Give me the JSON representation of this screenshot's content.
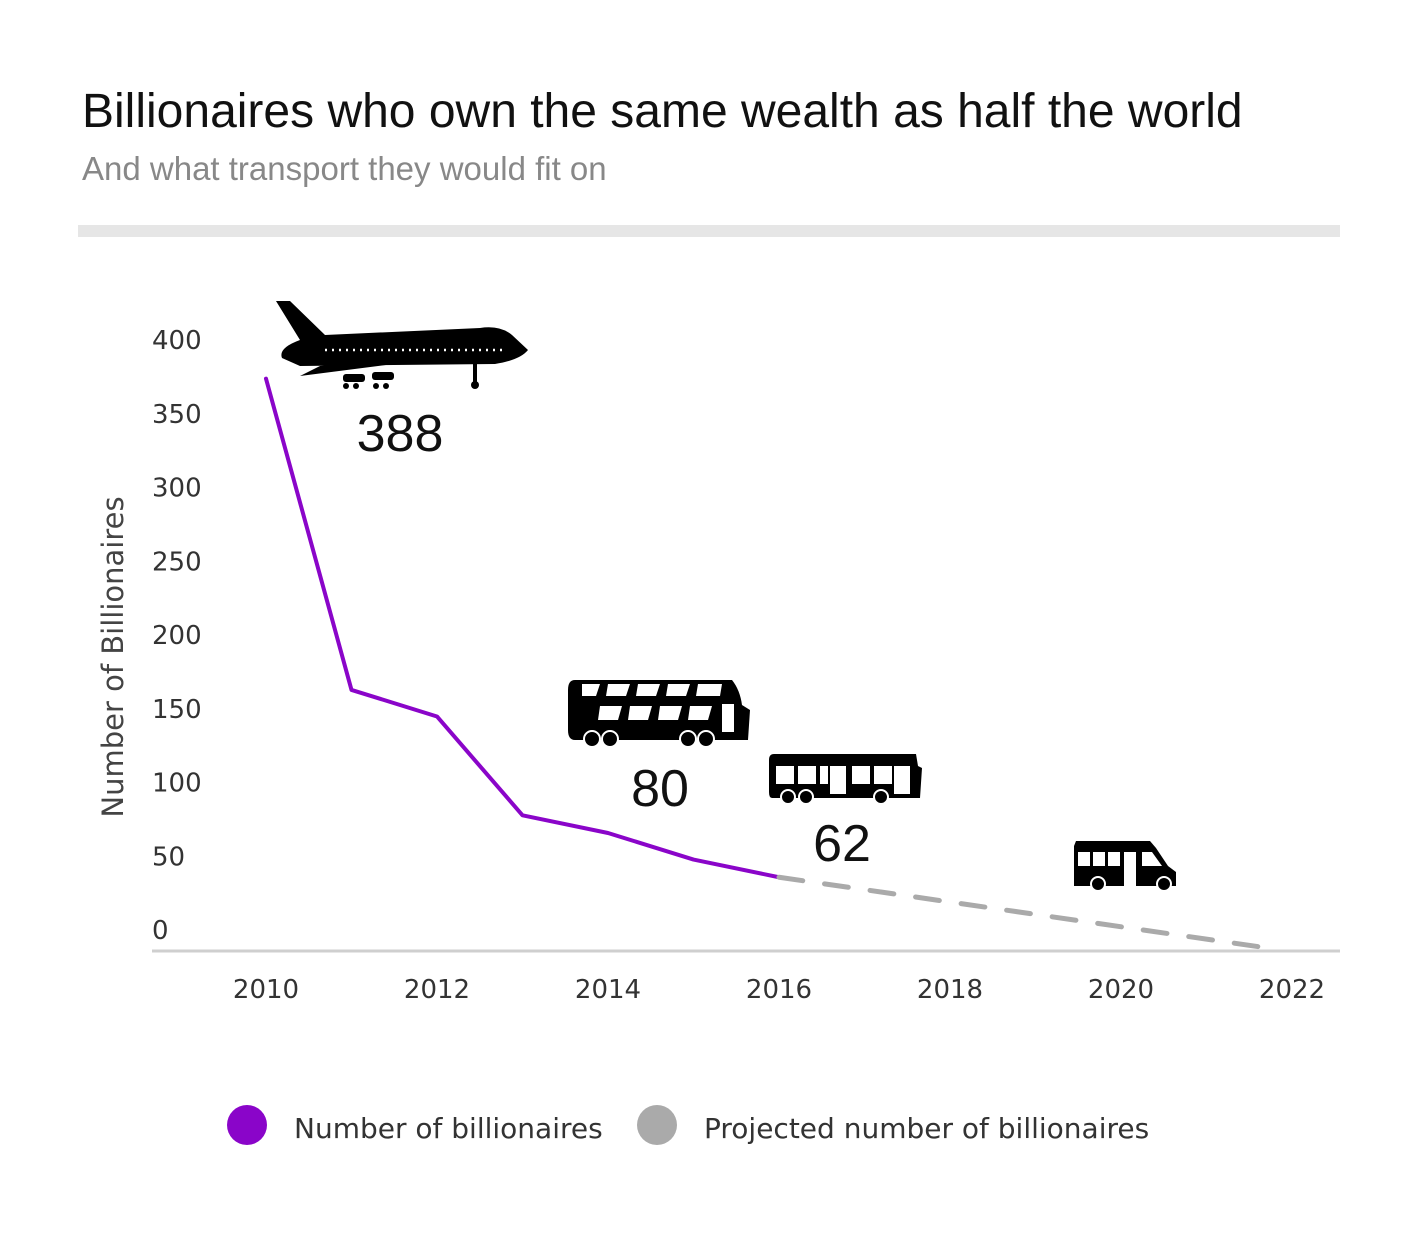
{
  "title": "Billionaires who own the same wealth as half the world",
  "subtitle": "And what transport they would fit on",
  "chart_data": {
    "type": "line",
    "title": "Billionaires who own the same wealth as half the world",
    "subtitle": "And what transport they would fit on",
    "xlabel": "",
    "ylabel": "Number of Billionaires",
    "xlim": [
      2009,
      2023
    ],
    "ylim": [
      0,
      400
    ],
    "x_ticks": [
      2010,
      2012,
      2014,
      2016,
      2018,
      2020,
      2022
    ],
    "y_ticks": [
      0,
      50,
      100,
      150,
      200,
      250,
      300,
      350,
      400
    ],
    "grid": false,
    "legend_position": "bottom",
    "series": [
      {
        "name": "Number of billionaires",
        "color": "#8a05c9",
        "style": "solid",
        "x": [
          2010,
          2011,
          2012,
          2013,
          2014,
          2015,
          2016
        ],
        "y": [
          388,
          177,
          159,
          92,
          80,
          62,
          50
        ]
      },
      {
        "name": "Projected number of billionaires",
        "color": "#aaaaaa",
        "style": "dashed",
        "x": [
          2016,
          2021.6
        ],
        "y": [
          50,
          3
        ]
      }
    ],
    "annotations": [
      {
        "icon": "airplane-icon",
        "label": "388"
      },
      {
        "icon": "double-decker-bus-icon",
        "label": "80"
      },
      {
        "icon": "bus-icon",
        "label": "62"
      },
      {
        "icon": "minibus-icon",
        "label": ""
      }
    ]
  }
}
